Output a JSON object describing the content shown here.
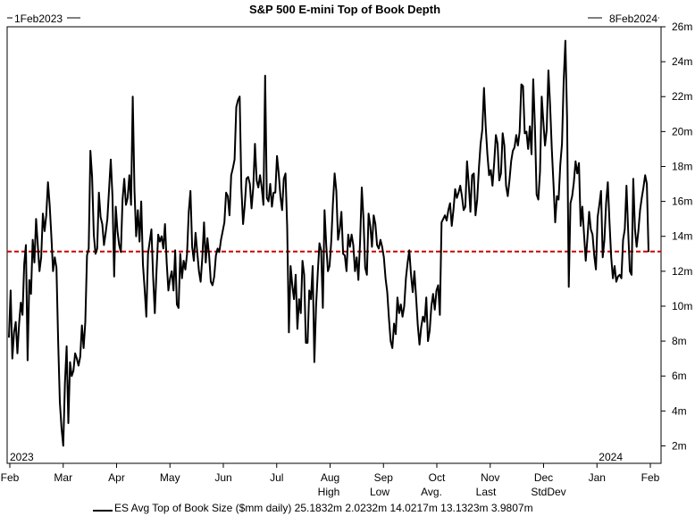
{
  "chart_data": {
    "type": "line",
    "title": "S&P 500 E-mini Top of Book Depth",
    "range_start": "1Feb2023",
    "range_end": "8Feb2024",
    "year_labels": [
      "2023",
      "2024"
    ],
    "x_ticks": [
      "Feb",
      "Mar",
      "Apr",
      "May",
      "Jun",
      "Jul",
      "Aug",
      "Sep",
      "Oct",
      "Nov",
      "Dec",
      "Jan",
      "Feb"
    ],
    "y_ticks": [
      "2m",
      "4m",
      "6m",
      "8m",
      "10m",
      "12m",
      "14m",
      "16m",
      "18m",
      "20m",
      "22m",
      "24m",
      "26m"
    ],
    "ylim": [
      1,
      26
    ],
    "y_axis_side": "right",
    "grid": false,
    "reference_line": {
      "value": 13.1323,
      "color": "#cc0000",
      "style": "dashed"
    },
    "series": [
      {
        "name": "ES Avg Top of Book Size ($mm daily)",
        "color": "#000000",
        "values": [
          8.2,
          10.9,
          7.0,
          8.5,
          9.1,
          7.3,
          9.0,
          10.2,
          9.5,
          12.4,
          13.5,
          6.9,
          11.5,
          10.7,
          13.8,
          12.5,
          15.0,
          13.5,
          12.0,
          12.8,
          15.3,
          14.3,
          15.2,
          17.1,
          15.8,
          14.0,
          12.0,
          12.8,
          12.2,
          8.0,
          4.5,
          3.0,
          2.0,
          5.6,
          7.7,
          3.3,
          6.8,
          6.0,
          6.3,
          7.3,
          7.0,
          6.6,
          7.1,
          8.9,
          7.6,
          9.1,
          12.9,
          13.3,
          18.9,
          17.4,
          14.1,
          13.0,
          13.3,
          16.5,
          15.1,
          14.7,
          13.5,
          14.2,
          15.0,
          16.7,
          18.4,
          16.3,
          11.7,
          15.7,
          14.3,
          13.5,
          13.1,
          16.1,
          17.3,
          15.8,
          16.2,
          17.5,
          15.8,
          22.0,
          16.7,
          14.0,
          15.5,
          13.7,
          16.0,
          12.4,
          11.0,
          9.4,
          13.0,
          13.7,
          14.4,
          11.7,
          9.6,
          12.0,
          14.1,
          13.7,
          14.0,
          13.3,
          14.7,
          12.5,
          10.9,
          11.6,
          12.0,
          10.9,
          13.2,
          10.1,
          9.9,
          13.0,
          11.6,
          12.6,
          12.1,
          13.0,
          15.4,
          16.6,
          13.4,
          12.6,
          14.2,
          13.1,
          12.0,
          11.4,
          12.8,
          14.8,
          12.5,
          13.9,
          12.9,
          11.4,
          11.2,
          11.7,
          12.9,
          13.3,
          13.1,
          13.8,
          14.3,
          14.8,
          16.5,
          16.3,
          15.2,
          17.5,
          17.9,
          18.4,
          21.4,
          21.8,
          22.0,
          16.8,
          14.7,
          15.8,
          17.3,
          17.4,
          17.0,
          15.6,
          16.8,
          19.3,
          17.2,
          16.8,
          17.5,
          16.8,
          15.8,
          23.2,
          16.2,
          16.0,
          17.0,
          15.7,
          16.5,
          16.5,
          18.6,
          17.6,
          16.3,
          15.5,
          17.3,
          17.6,
          14.5,
          8.5,
          12.3,
          11.2,
          10.4,
          11.8,
          8.7,
          10.4,
          9.6,
          12.6,
          11.8,
          7.9,
          7.9,
          10.9,
          10.4,
          12.3,
          6.8,
          10.0,
          11.9,
          13.6,
          13.2,
          9.9,
          15.5,
          13.5,
          12.0,
          12.3,
          13.7,
          15.9,
          17.6,
          16.6,
          13.8,
          14.4,
          15.4,
          13.0,
          12.9,
          12.0,
          14.1,
          13.4,
          14.1,
          13.5,
          12.0,
          12.8,
          11.5,
          13.7,
          16.8,
          15.0,
          12.2,
          11.8,
          15.3,
          14.6,
          13.4,
          15.2,
          14.7,
          13.5,
          13.3,
          13.8,
          13.4,
          12.8,
          11.6,
          10.8,
          9.3,
          8.0,
          7.6,
          9.0,
          8.4,
          10.5,
          9.6,
          10.1,
          9.4,
          10.0,
          11.6,
          12.5,
          13.2,
          11.8,
          10.8,
          12.0,
          10.5,
          8.9,
          7.8,
          8.8,
          9.4,
          9.1,
          10.5,
          8.0,
          8.6,
          10.0,
          10.7,
          9.8,
          10.9,
          11.2,
          9.5,
          14.8,
          15.0,
          15.2,
          14.9,
          15.5,
          15.9,
          14.6,
          15.5,
          16.7,
          16.2,
          16.5,
          16.9,
          16.3,
          15.5,
          15.7,
          18.3,
          17.0,
          15.4,
          17.5,
          17.6,
          15.2,
          16.1,
          17.9,
          19.3,
          20.1,
          22.5,
          20.3,
          18.7,
          17.5,
          17.8,
          16.9,
          18.2,
          19.8,
          19.3,
          17.2,
          17.6,
          19.9,
          19.2,
          16.9,
          16.3,
          17.2,
          18.3,
          18.9,
          19.1,
          19.8,
          19.2,
          20.0,
          22.7,
          22.6,
          19.9,
          20.0,
          19.0,
          20.3,
          18.7,
          23.0,
          20.3,
          16.4,
          16.1,
          17.7,
          22.0,
          20.6,
          19.2,
          20.1,
          23.5,
          21.5,
          19.0,
          17.0,
          14.8,
          16.3,
          16.1,
          18.1,
          19.3,
          22.9,
          25.2,
          20.8,
          11.1,
          15.9,
          16.3,
          17.1,
          18.3,
          17.6,
          18.2,
          14.6,
          15.7,
          14.1,
          12.6,
          13.9,
          15.4,
          14.4,
          14.1,
          12.9,
          12.1,
          15.1,
          15.8,
          16.6,
          12.8,
          13.8,
          15.9,
          17.1,
          14.8,
          12.8,
          11.6,
          12.3,
          11.4,
          11.7,
          11.8,
          11.6,
          13.8,
          14.4,
          16.9,
          14.3,
          12.0,
          11.8,
          17.3,
          14.4,
          13.4,
          14.3,
          15.5,
          16.2,
          16.8,
          17.5,
          17.0,
          13.1
        ]
      }
    ],
    "stats": [
      {
        "label": "High",
        "value": "25.1832m"
      },
      {
        "label": "Low",
        "value": "2.0232m"
      },
      {
        "label": "Avg.",
        "value": "14.0217m"
      },
      {
        "label": "Last",
        "value": "13.1323m"
      },
      {
        "label": "StdDev",
        "value": "3.9807m"
      }
    ]
  }
}
